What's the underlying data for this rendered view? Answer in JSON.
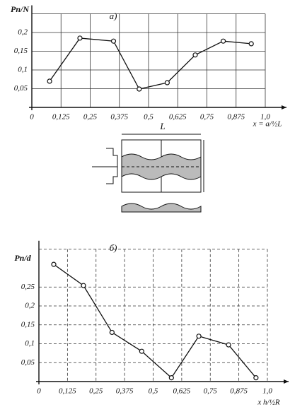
{
  "chart_data": [
    {
      "type": "line",
      "title": "а)",
      "ylabel": "Pn/N",
      "xlabel": "x = a/½L",
      "color": "#111111",
      "grid": true,
      "grid_style": "solid",
      "x": [
        0.076,
        0.206,
        0.35,
        0.46,
        0.58,
        0.7,
        0.82,
        0.94
      ],
      "values": [
        0.07,
        0.185,
        0.177,
        0.049,
        0.066,
        0.14,
        0.177,
        0.17
      ],
      "xlim": [
        0,
        1.0
      ],
      "ylim": [
        0,
        0.25
      ],
      "xticks": [
        0,
        {
          "value": 0.125,
          "label": "0,125"
        },
        {
          "value": 0.25,
          "label": "0,25"
        },
        {
          "value": 0.375,
          "label": "0,375"
        },
        {
          "value": 0.5,
          "label": "0,5"
        },
        {
          "value": 0.625,
          "label": "0,625"
        },
        {
          "value": 0.75,
          "label": "0,75"
        },
        {
          "value": 0.875,
          "label": "0,875"
        },
        {
          "value": 1.0,
          "label": "1,0"
        }
      ],
      "yticks": [
        {
          "value": 0.05,
          "label": "0,05"
        },
        {
          "value": 0.1,
          "label": "0,1"
        },
        {
          "value": 0.15,
          "label": "0,15"
        },
        {
          "value": 0.2,
          "label": "0,2"
        }
      ]
    },
    {
      "type": "line",
      "title": "б)",
      "ylabel": "Pn/d",
      "xlabel": "x  h/½R",
      "color": "#111111",
      "grid": true,
      "grid_style": "dashed",
      "x": [
        0.065,
        0.195,
        0.32,
        0.45,
        0.58,
        0.7,
        0.83,
        0.95
      ],
      "values": [
        0.31,
        0.254,
        0.13,
        0.08,
        0.01,
        0.12,
        0.097,
        0.01
      ],
      "xlim": [
        0,
        1.0
      ],
      "ylim": [
        0,
        0.35
      ],
      "xticks": [
        0,
        {
          "value": 0.125,
          "label": "0,125"
        },
        {
          "value": 0.25,
          "label": "0,25"
        },
        {
          "value": 0.375,
          "label": "0,375"
        },
        {
          "value": 0.5,
          "label": "0,5"
        },
        {
          "value": 0.625,
          "label": "0,625"
        },
        {
          "value": 0.75,
          "label": "0,75"
        },
        {
          "value": 0.875,
          "label": "0,875"
        },
        {
          "value": 1.0,
          "label": "1,0"
        }
      ],
      "yticks": [
        {
          "value": 0.05,
          "label": "0,05"
        },
        {
          "value": 0.1,
          "label": "0,1"
        },
        {
          "value": 0.15,
          "label": "0,15"
        },
        {
          "value": 0.2,
          "label": "0,2"
        },
        {
          "value": 0.25,
          "label": "0,25"
        }
      ]
    }
  ],
  "diagram": {
    "label": "L"
  }
}
